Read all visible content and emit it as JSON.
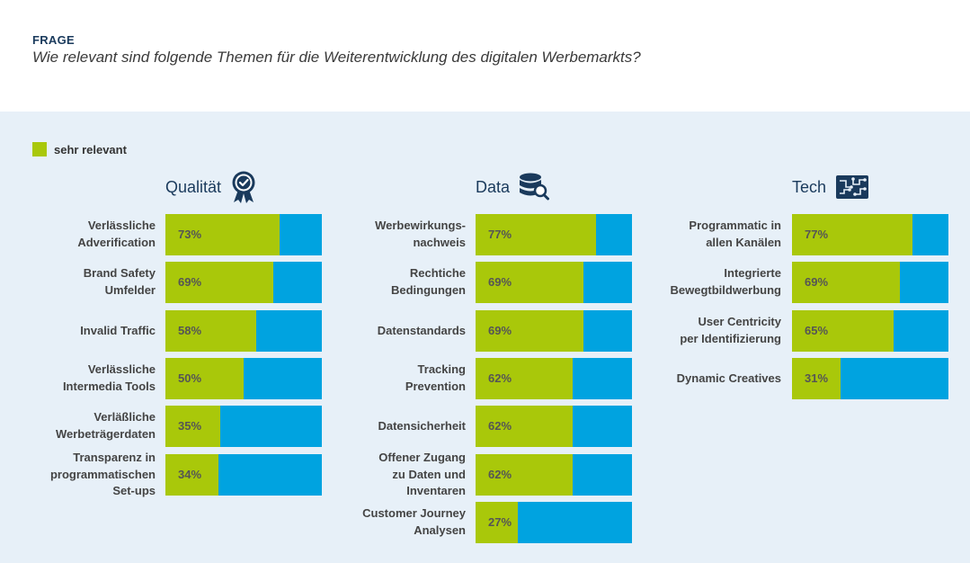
{
  "header": {
    "label": "FRAGE",
    "question": "Wie relevant sind folgende Themen für die Weiterentwicklung des digitalen Werbemarkts?"
  },
  "legend": {
    "label": "sehr relevant",
    "color": "#a9c80a"
  },
  "colors": {
    "fill": "#a9c80a",
    "rest": "#00a3e0",
    "title": "#1a3a5c",
    "panel": "#e7f0f8"
  },
  "chart_data": [
    {
      "type": "bar",
      "title": "Qualität",
      "icon": "award-ribbon-icon",
      "unit": "%",
      "ylim": [
        0,
        100
      ],
      "categories": [
        "Verlässliche\nAdverification",
        "Brand Safety\nUmfelder",
        "Invalid Traffic",
        "Verlässliche\nIntermedia Tools",
        "Verläßliche\nWerbeträgerdaten",
        "Transparenz in\nprogrammatischen\nSet-ups"
      ],
      "series": [
        {
          "name": "sehr relevant",
          "values": [
            73,
            69,
            58,
            50,
            35,
            34
          ]
        }
      ]
    },
    {
      "type": "bar",
      "title": "Data",
      "icon": "database-search-icon",
      "unit": "%",
      "ylim": [
        0,
        100
      ],
      "categories": [
        "Werbewirkungs-\nnachweis",
        "Rechtiche\nBedingungen",
        "Datenstandards",
        "Tracking\nPrevention",
        "Datensicherheit",
        "Offener Zugang\nzu Daten und\nInventaren",
        "Customer Journey\nAnalysen"
      ],
      "series": [
        {
          "name": "sehr relevant",
          "values": [
            77,
            69,
            69,
            62,
            62,
            62,
            27
          ]
        }
      ]
    },
    {
      "type": "bar",
      "title": "Tech",
      "icon": "circuit-board-icon",
      "unit": "%",
      "ylim": [
        0,
        100
      ],
      "categories": [
        "Programmatic in\nallen Kanälen",
        "Integrierte\nBewegtbildwerbung",
        "User Centricity\nper Identifizierung",
        "Dynamic Creatives"
      ],
      "series": [
        {
          "name": "sehr relevant",
          "values": [
            77,
            69,
            65,
            31
          ]
        }
      ]
    }
  ]
}
